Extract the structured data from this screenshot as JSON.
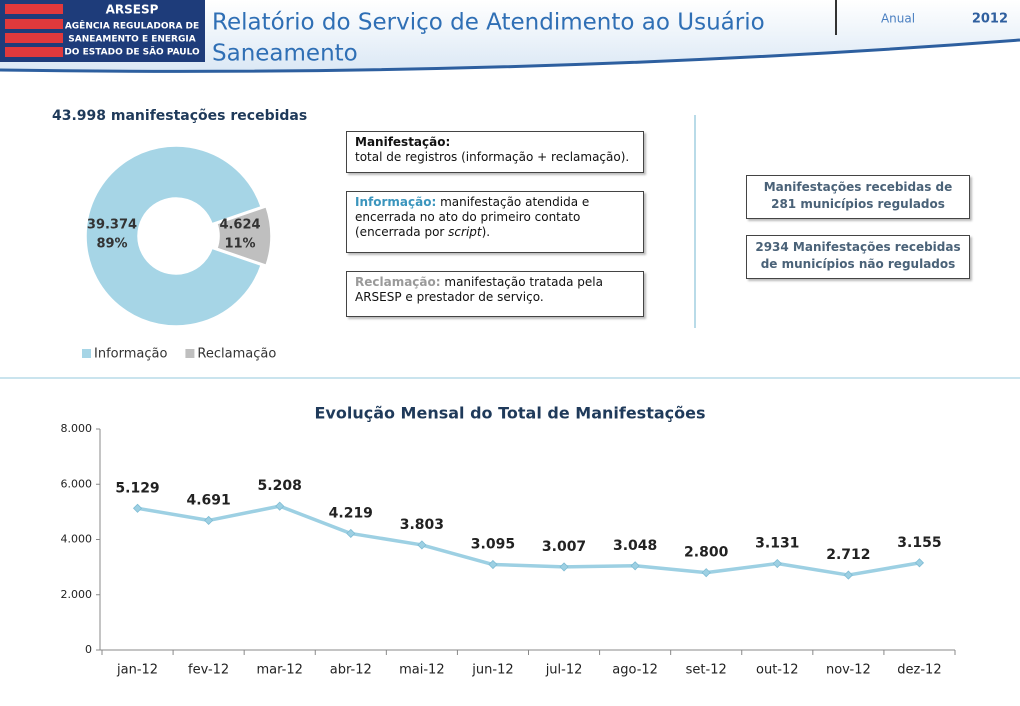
{
  "header": {
    "logo": {
      "name": "ARSESP",
      "lines": [
        "AGÊNCIA REGULADORA DE",
        "SANEAMENTO E ENERGIA",
        "DO ESTADO DE SÃO PAULO"
      ]
    },
    "title_line1": "Relatório do Serviço de Atendimento ao Usuário",
    "title_line2": "Saneamento",
    "period": "Anual",
    "year": "2012"
  },
  "definitions": [
    {
      "term": "Manifestação:",
      "text": "total de registros (informação + reclamação)."
    },
    {
      "term": "Informação:",
      "text": "manifestação atendida e encerrada no ato do primeiro contato (encerrada por ",
      "emphasis": "script",
      "tail": ")."
    },
    {
      "term": "Reclamação:",
      "text": "manifestação tratada pela ARSESP e prestador de serviço."
    }
  ],
  "notes": [
    "Manifestações recebidas de 281 municípios regulados",
    "2934 Manifestações recebidas de municípios não regulados"
  ],
  "chart_data": [
    {
      "type": "donut",
      "title": "43.998 manifestações recebidas",
      "categories": [
        "Informação",
        "Reclamação"
      ],
      "values": [
        39374,
        4624
      ],
      "value_labels": [
        "39.374",
        "4.624"
      ],
      "percents": [
        89,
        11
      ],
      "percent_labels": [
        "89%",
        "11%"
      ],
      "colors": [
        "#a6d5e6",
        "#bfbfbf"
      ],
      "legend": "bottom"
    },
    {
      "type": "line",
      "title": "Evolução Mensal do Total de Manifestações",
      "categories": [
        "jan-12",
        "fev-12",
        "mar-12",
        "abr-12",
        "mai-12",
        "jun-12",
        "jul-12",
        "ago-12",
        "set-12",
        "out-12",
        "nov-12",
        "dez-12"
      ],
      "values": [
        5129,
        4691,
        5208,
        4219,
        3803,
        3095,
        3007,
        3048,
        2800,
        3131,
        2712,
        3155
      ],
      "value_labels": [
        "5.129",
        "4.691",
        "5.208",
        "4.219",
        "3.803",
        "3.095",
        "3.007",
        "3.048",
        "2.800",
        "3.131",
        "2.712",
        "3.155"
      ],
      "color": "#9dd0e3",
      "marker": "diamond",
      "ylim": [
        0,
        8000
      ],
      "yticks": [
        0,
        {
          "value": 2000,
          "label": "2.000"
        },
        {
          "value": 4000,
          "label": "4.000"
        },
        {
          "value": 6000,
          "label": "6.000"
        },
        {
          "value": 8000,
          "label": "8.000"
        }
      ]
    }
  ]
}
